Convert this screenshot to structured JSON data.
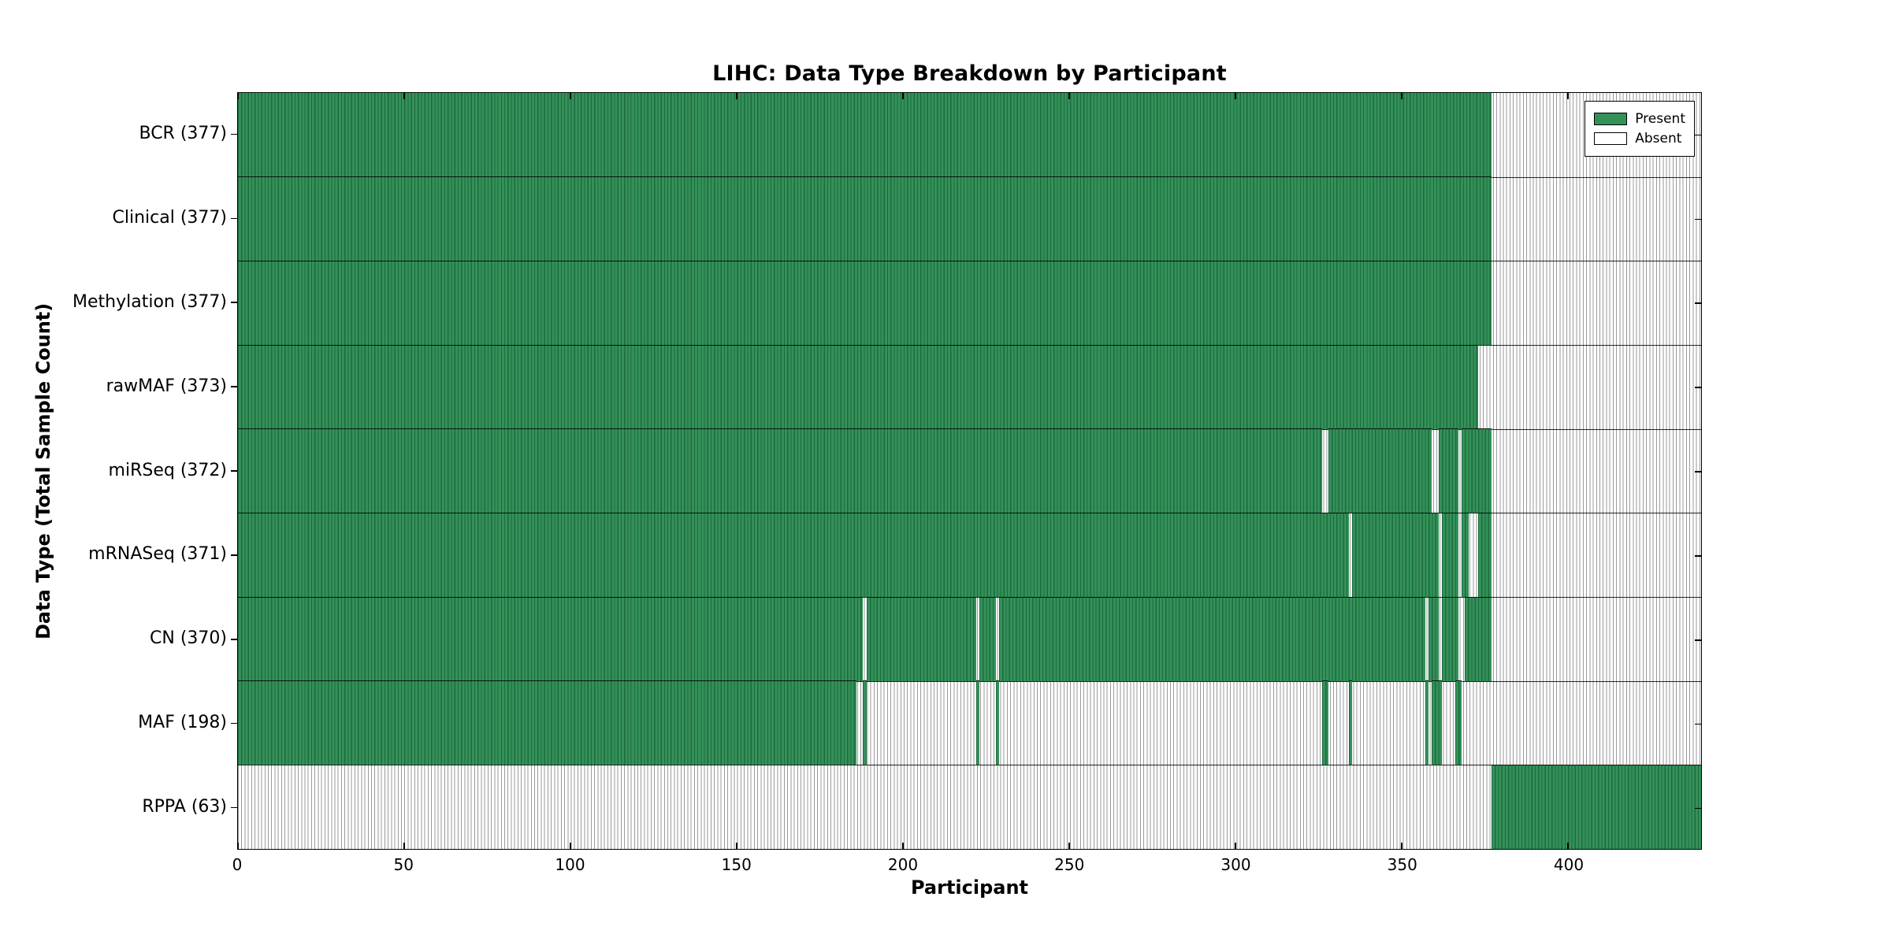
{
  "chart_data": {
    "type": "heatmap",
    "title": "LIHC: Data Type Breakdown by Participant",
    "xlabel": "Participant",
    "ylabel": "Data Type (Total Sample Count)",
    "x_range": [
      0,
      440
    ],
    "x_ticks": [
      0,
      50,
      100,
      150,
      200,
      250,
      300,
      350,
      400
    ],
    "grid": false,
    "legend_position": "upper right",
    "legend_entries": [
      {
        "label": "Present",
        "color": "#349158"
      },
      {
        "label": "Absent",
        "color": "#ffffff"
      }
    ],
    "rows": [
      {
        "label": "BCR (377)",
        "data_type": "BCR",
        "total_samples": 377,
        "present_ranges": [
          [
            0,
            377
          ]
        ]
      },
      {
        "label": "Clinical (377)",
        "data_type": "Clinical",
        "total_samples": 377,
        "present_ranges": [
          [
            0,
            377
          ]
        ]
      },
      {
        "label": "Methylation (377)",
        "data_type": "Methylation",
        "total_samples": 377,
        "present_ranges": [
          [
            0,
            377
          ]
        ]
      },
      {
        "label": "rawMAF (373)",
        "data_type": "rawMAF",
        "total_samples": 373,
        "present_ranges": [
          [
            0,
            373
          ]
        ]
      },
      {
        "label": "miRSeq (372)",
        "data_type": "miRSeq",
        "total_samples": 372,
        "present_ranges": [
          [
            0,
            326
          ],
          [
            328,
            359
          ],
          [
            361,
            367
          ],
          [
            368,
            377
          ]
        ]
      },
      {
        "label": "mRNASeq (371)",
        "data_type": "mRNASeq",
        "total_samples": 371,
        "present_ranges": [
          [
            0,
            334
          ],
          [
            335,
            361
          ],
          [
            362,
            367
          ],
          [
            368,
            370
          ],
          [
            373,
            377
          ]
        ]
      },
      {
        "label": "CN (370)",
        "data_type": "CN",
        "total_samples": 370,
        "present_ranges": [
          [
            0,
            188
          ],
          [
            189,
            222
          ],
          [
            223,
            228
          ],
          [
            229,
            357
          ],
          [
            358,
            361
          ],
          [
            362,
            367
          ],
          [
            369,
            377
          ]
        ]
      },
      {
        "label": "MAF (198)",
        "data_type": "MAF",
        "total_samples": 198,
        "present_ranges": [
          [
            0,
            186
          ],
          [
            188,
            189
          ],
          [
            222,
            223
          ],
          [
            228,
            229
          ],
          [
            326,
            328
          ],
          [
            334,
            335
          ],
          [
            357,
            358
          ],
          [
            359,
            362
          ],
          [
            366,
            368
          ]
        ]
      },
      {
        "label": "RPPA (63)",
        "data_type": "RPPA",
        "total_samples": 63,
        "present_ranges": [
          [
            377,
            440
          ]
        ]
      }
    ],
    "colors": {
      "present_fill": "#349158",
      "present_edge": "#1c6b40",
      "absent_fill": "#ffffff",
      "absent_edge": "#999999",
      "axis": "#000000"
    }
  }
}
